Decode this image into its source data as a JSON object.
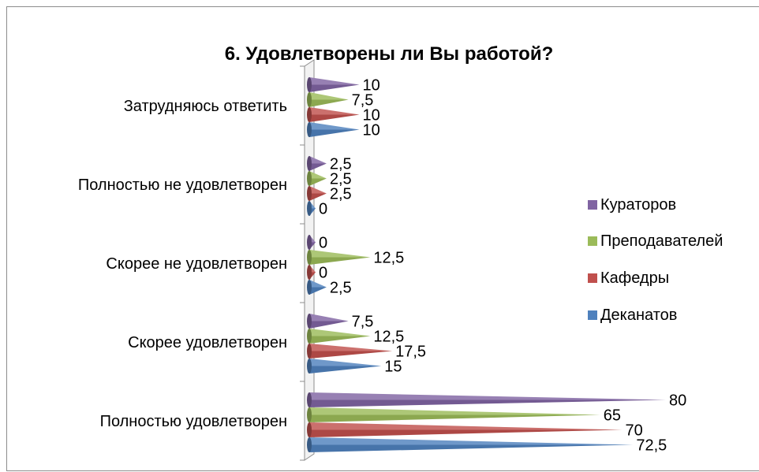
{
  "chart_data": {
    "type": "bar",
    "orientation": "horizontal",
    "style": "3d-cone",
    "title": "6. Удовлетворены ли Вы работой?",
    "categories": [
      "Полностью удовлетворен",
      "Скорее удовлетворен",
      "Скорее не удовлетворен",
      "Полностью не удовлетворен",
      "Затрудняюсь ответить"
    ],
    "series": [
      {
        "name": "Деканатов",
        "color": "#4F81BD",
        "values": [
          72.5,
          15,
          2.5,
          0,
          10
        ],
        "labels": [
          "72,5",
          "15",
          "2,5",
          "0",
          "10"
        ]
      },
      {
        "name": "Кафедры",
        "color": "#C0504D",
        "values": [
          70,
          17.5,
          0,
          2.5,
          10
        ],
        "labels": [
          "70",
          "17,5",
          "0",
          "2,5",
          "10"
        ]
      },
      {
        "name": "Преподавателей",
        "color": "#9BBB59",
        "values": [
          65,
          12.5,
          12.5,
          2.5,
          7.5
        ],
        "labels": [
          "65",
          "12,5",
          "12,5",
          "2,5",
          "7,5"
        ]
      },
      {
        "name": "Кураторов",
        "color": "#8064A2",
        "values": [
          80,
          7.5,
          0,
          2.5,
          10
        ],
        "labels": [
          "80",
          "7,5",
          "0",
          "2,5",
          "10"
        ]
      }
    ],
    "legend_position": "right",
    "grid": false
  }
}
